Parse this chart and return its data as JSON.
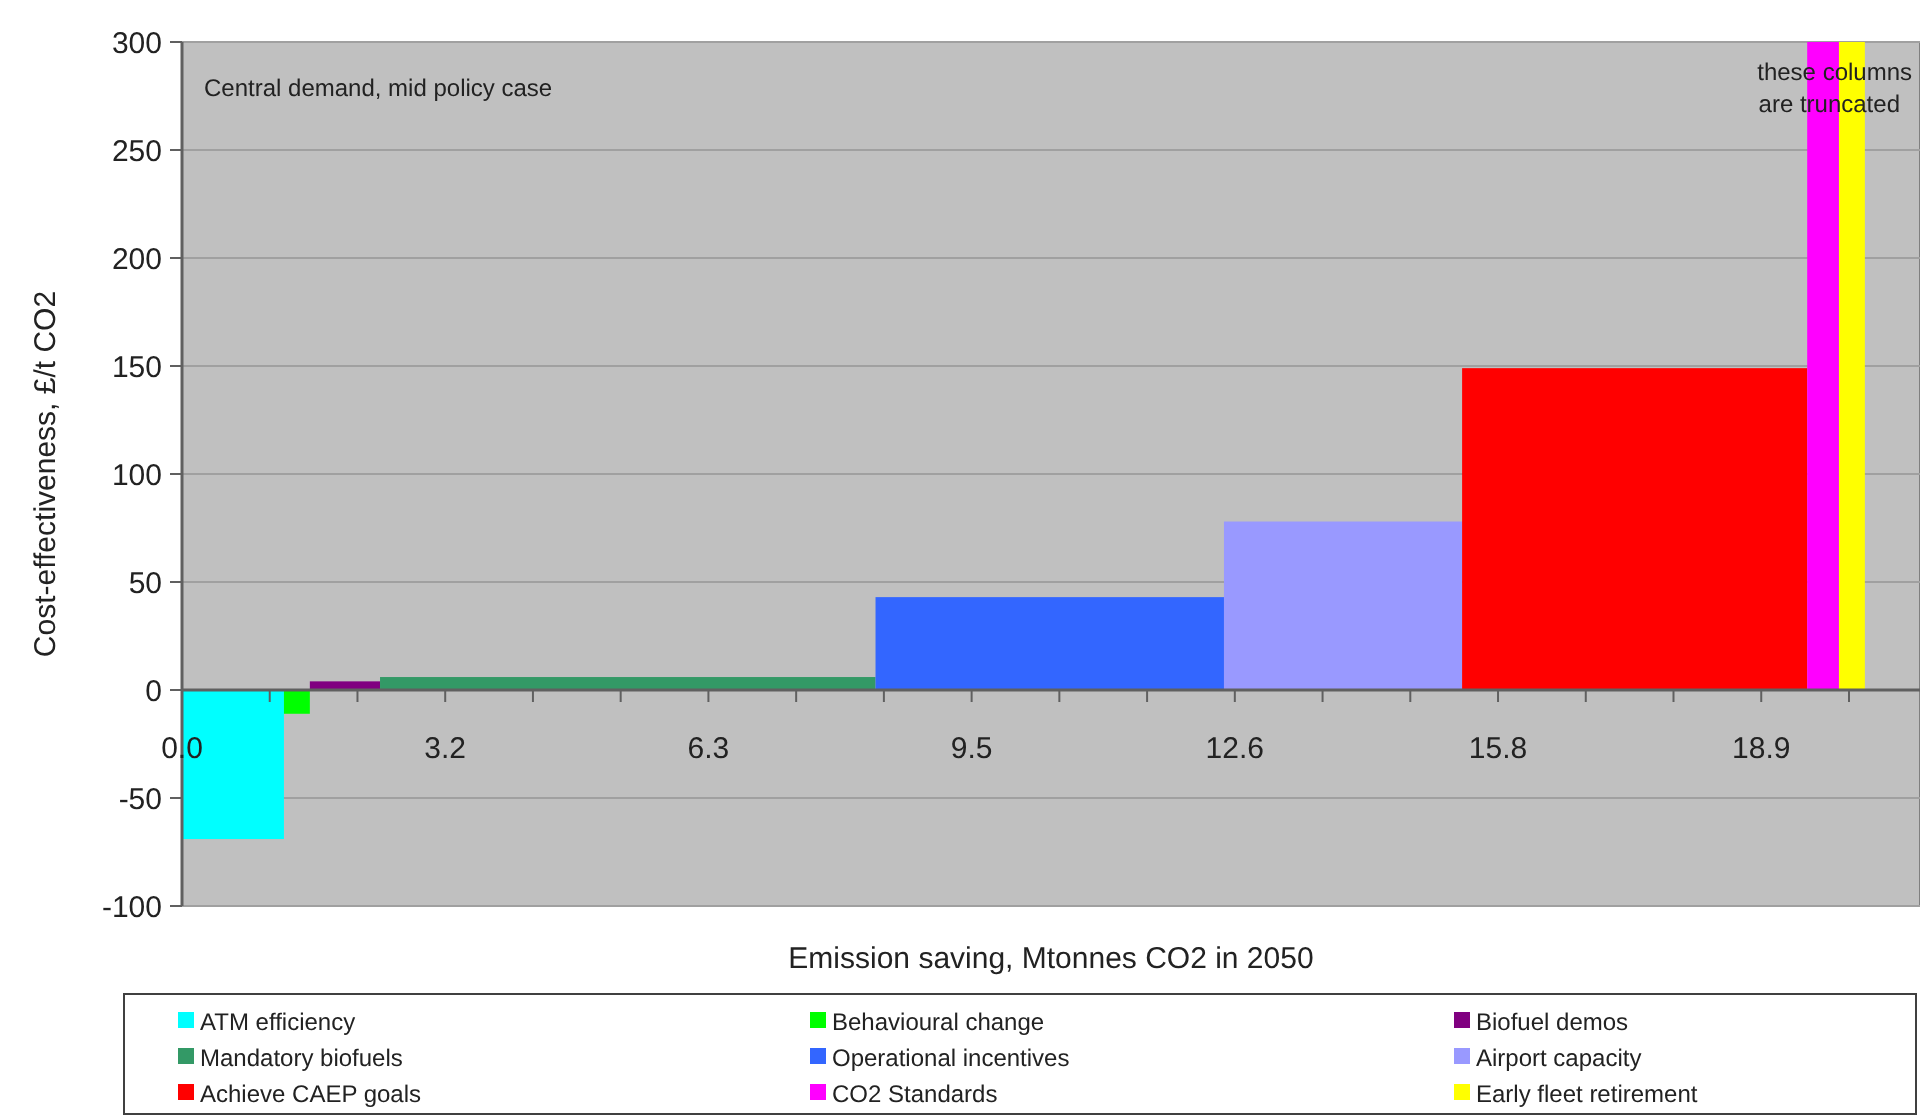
{
  "chart_data": {
    "type": "histogram",
    "xlabel": "Emission saving, Mtonnes CO2 in 2050",
    "ylabel": "Cost-effectiveness, £/t CO2",
    "annotations": [
      "Central demand, mid policy case",
      "these columns are truncated"
    ],
    "xlim": [
      0,
      20.8
    ],
    "xticks": [
      {
        "value": 0,
        "label": "0.0"
      },
      {
        "value": 1.05,
        "label": null
      },
      {
        "value": 2.1,
        "label": null
      },
      {
        "value": 3.15,
        "label": "3.2"
      },
      {
        "value": 4.2,
        "label": null
      },
      {
        "value": 5.25,
        "label": null
      },
      {
        "value": 6.3,
        "label": "6.3"
      },
      {
        "value": 7.35,
        "label": null
      },
      {
        "value": 8.4,
        "label": null
      },
      {
        "value": 9.45,
        "label": "9.5"
      },
      {
        "value": 10.5,
        "label": null
      },
      {
        "value": 11.55,
        "label": null
      },
      {
        "value": 12.6,
        "label": "12.6"
      },
      {
        "value": 13.65,
        "label": null
      },
      {
        "value": 14.7,
        "label": null
      },
      {
        "value": 15.75,
        "label": "15.8"
      },
      {
        "value": 16.8,
        "label": null
      },
      {
        "value": 17.85,
        "label": null
      },
      {
        "value": 18.9,
        "label": "18.9"
      },
      {
        "value": 19.95,
        "label": null
      }
    ],
    "ylim": [
      -100,
      300
    ],
    "yticks": [
      -100,
      -50,
      0,
      50,
      100,
      150,
      200,
      250,
      300
    ],
    "grid": "y",
    "legend": "bottom",
    "bins": [
      0,
      1.22,
      1.53,
      2.37,
      8.3,
      12.47,
      15.32,
      19.45,
      19.83,
      20.14
    ],
    "series": [
      {
        "name": "ATM efficiency",
        "color": "#00ffff",
        "values": [
          -69,
          null,
          null,
          null,
          null,
          null,
          null,
          null,
          null
        ]
      },
      {
        "name": "Behavioural change",
        "color": "#00ff00",
        "values": [
          null,
          -11,
          null,
          null,
          null,
          null,
          null,
          null,
          null
        ]
      },
      {
        "name": "Biofuel demos",
        "color": "#800080",
        "values": [
          null,
          null,
          4,
          null,
          null,
          null,
          null,
          null,
          null
        ]
      },
      {
        "name": "Mandatory biofuels",
        "color": "#339966",
        "values": [
          null,
          null,
          null,
          6,
          null,
          null,
          null,
          null,
          null
        ]
      },
      {
        "name": "Operational incentives",
        "color": "#3366ff",
        "values": [
          null,
          null,
          null,
          null,
          43,
          null,
          null,
          null,
          null
        ]
      },
      {
        "name": "Airport capacity",
        "color": "#9999ff",
        "values": [
          null,
          null,
          null,
          null,
          null,
          78,
          null,
          null,
          null
        ]
      },
      {
        "name": "Achieve CAEP goals",
        "color": "#ff0000",
        "values": [
          null,
          null,
          null,
          null,
          null,
          null,
          149,
          null,
          null
        ]
      },
      {
        "name": "CO2 Standards",
        "color": "#ff00ff",
        "values": [
          null,
          null,
          null,
          null,
          null,
          null,
          null,
          300,
          null
        ]
      },
      {
        "name": "Early fleet retirement",
        "color": "#ffff00",
        "values": [
          null,
          null,
          null,
          null,
          null,
          null,
          null,
          null,
          300
        ]
      }
    ]
  }
}
